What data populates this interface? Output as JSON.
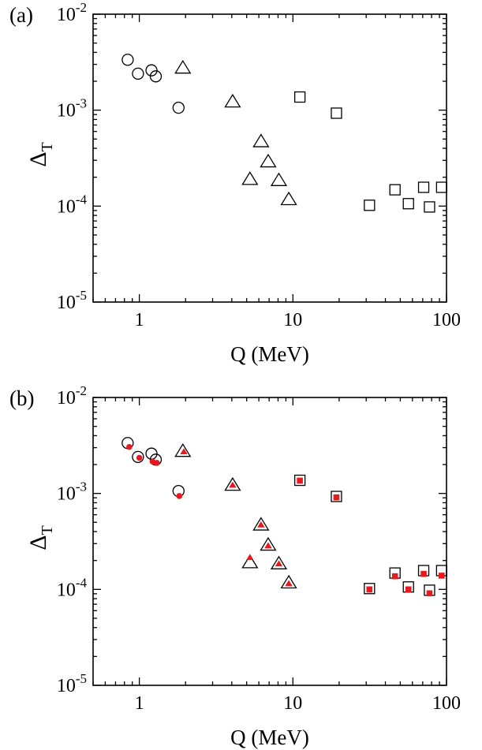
{
  "chart_data": [
    {
      "type": "scatter",
      "panel_label": "(a)",
      "xlabel": "Q (MeV)",
      "ylabel_main": "Δ",
      "ylabel_sub": "T",
      "xscale": "log",
      "yscale": "log",
      "xlim": [
        0.5,
        100
      ],
      "ylim": [
        1e-05,
        0.01
      ],
      "x_ticks": [
        {
          "value": 1,
          "label": "1"
        },
        {
          "value": 10,
          "label": "10"
        },
        {
          "value": 100,
          "label": "100"
        }
      ],
      "y_ticks": [
        {
          "value": 0.01,
          "base": "10",
          "exp": "-2"
        },
        {
          "value": 0.001,
          "base": "10",
          "exp": "-3"
        },
        {
          "value": 0.0001,
          "base": "10",
          "exp": "-4"
        },
        {
          "value": 1e-05,
          "base": "10",
          "exp": "-5"
        }
      ],
      "series": [
        {
          "marker": "circle",
          "fill": "none",
          "stroke": "#000000",
          "points": [
            [
              0.84,
              0.00335
            ],
            [
              0.98,
              0.0024
            ],
            [
              1.2,
              0.0026
            ],
            [
              1.28,
              0.00225
            ],
            [
              1.8,
              0.00106
            ]
          ]
        },
        {
          "marker": "triangle",
          "fill": "none",
          "stroke": "#000000",
          "points": [
            [
              1.92,
              0.00275
            ],
            [
              4.05,
              0.00122
            ],
            [
              5.25,
              0.00019
            ],
            [
              6.2,
              0.00047
            ],
            [
              6.9,
              0.00029
            ],
            [
              8.1,
              0.000185
            ],
            [
              9.4,
              0.000117
            ]
          ]
        },
        {
          "marker": "square",
          "fill": "none",
          "stroke": "#000000",
          "points": [
            [
              11.1,
              0.00137
            ],
            [
              19.2,
              0.00093
            ],
            [
              31.5,
              0.000102
            ],
            [
              46.2,
              0.000148
            ],
            [
              56.5,
              0.000106
            ],
            [
              71.0,
              0.000157
            ],
            [
              77.5,
              9.8e-05
            ],
            [
              93.0,
              0.000157
            ]
          ]
        }
      ]
    },
    {
      "type": "scatter",
      "panel_label": "(b)",
      "xlabel": "Q (MeV)",
      "ylabel_main": "Δ",
      "ylabel_sub": "T",
      "xscale": "log",
      "yscale": "log",
      "xlim": [
        0.5,
        100
      ],
      "ylim": [
        1e-05,
        0.01
      ],
      "x_ticks": [
        {
          "value": 1,
          "label": "1"
        },
        {
          "value": 10,
          "label": "10"
        },
        {
          "value": 100,
          "label": "100"
        }
      ],
      "y_ticks": [
        {
          "value": 0.01,
          "base": "10",
          "exp": "-2"
        },
        {
          "value": 0.001,
          "base": "10",
          "exp": "-3"
        },
        {
          "value": 0.0001,
          "base": "10",
          "exp": "-4"
        },
        {
          "value": 1e-05,
          "base": "10",
          "exp": "-5"
        }
      ],
      "series": [
        {
          "marker": "circle",
          "fill": "none",
          "stroke": "#000000",
          "points": [
            [
              0.84,
              0.00335
            ],
            [
              0.98,
              0.0024
            ],
            [
              1.2,
              0.0026
            ],
            [
              1.28,
              0.00225
            ],
            [
              1.8,
              0.00106
            ]
          ]
        },
        {
          "marker": "triangle",
          "fill": "none",
          "stroke": "#000000",
          "points": [
            [
              1.92,
              0.00275
            ],
            [
              4.05,
              0.00122
            ],
            [
              5.25,
              0.00019
            ],
            [
              6.2,
              0.00047
            ],
            [
              6.9,
              0.00029
            ],
            [
              8.1,
              0.000185
            ],
            [
              9.4,
              0.000117
            ]
          ]
        },
        {
          "marker": "square",
          "fill": "none",
          "stroke": "#000000",
          "points": [
            [
              11.1,
              0.00137
            ],
            [
              19.2,
              0.00093
            ],
            [
              31.5,
              0.000102
            ],
            [
              46.2,
              0.000148
            ],
            [
              56.5,
              0.000106
            ],
            [
              71.0,
              0.000157
            ],
            [
              77.5,
              9.8e-05
            ],
            [
              93.0,
              0.000157
            ]
          ]
        },
        {
          "marker": "circle",
          "fill": "#e8191e",
          "stroke": "#e8191e",
          "small": true,
          "points": [
            [
              0.86,
              0.00305
            ],
            [
              1.0,
              0.00235
            ],
            [
              1.22,
              0.00215
            ],
            [
              1.3,
              0.00208
            ],
            [
              1.82,
              0.00094
            ]
          ]
        },
        {
          "marker": "triangle",
          "fill": "#e8191e",
          "stroke": "#e8191e",
          "small": true,
          "points": [
            [
              1.95,
              0.00272
            ],
            [
              4.05,
              0.00122
            ],
            [
              5.25,
              0.000215
            ],
            [
              6.2,
              0.00047
            ],
            [
              6.9,
              0.000285
            ],
            [
              8.1,
              0.000185
            ],
            [
              9.4,
              0.000115
            ]
          ]
        },
        {
          "marker": "square",
          "fill": "#e8191e",
          "stroke": "#e8191e",
          "small": true,
          "points": [
            [
              11.1,
              0.00136
            ],
            [
              19.2,
              0.00091
            ],
            [
              31.5,
              0.0001
            ],
            [
              46.2,
              0.000137
            ],
            [
              56.5,
              0.0001
            ],
            [
              71.0,
              0.000145
            ],
            [
              77.5,
              9.1e-05
            ],
            [
              93.0,
              0.000139
            ]
          ]
        }
      ]
    }
  ]
}
